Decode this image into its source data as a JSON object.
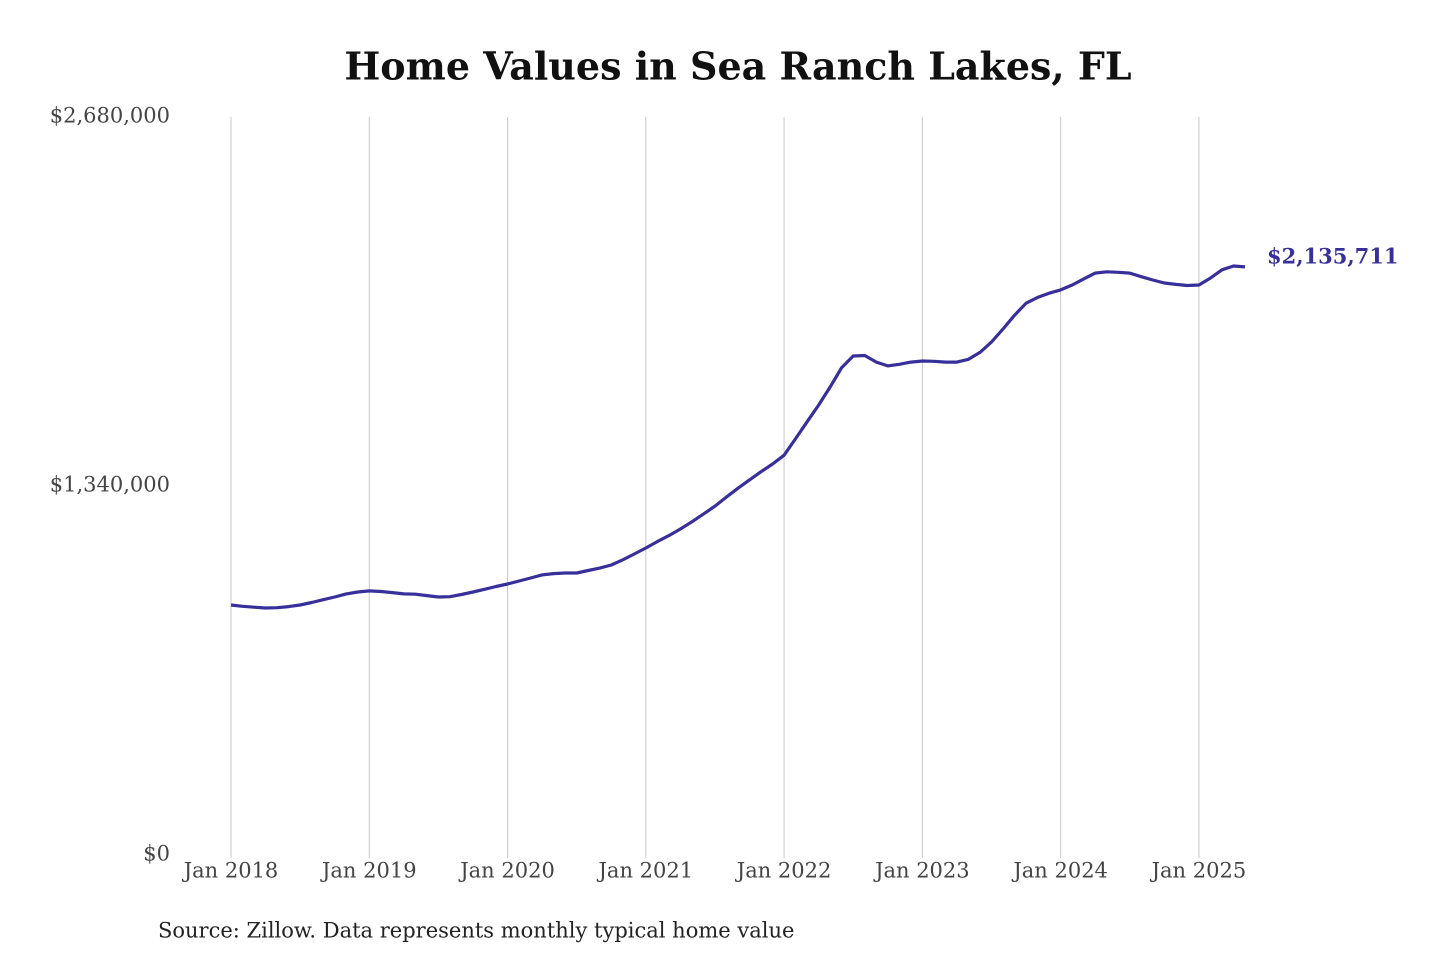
{
  "chart_data": {
    "type": "line",
    "title": "Home Values in Sea Ranch Lakes, FL",
    "source": "Source: Zillow. Data represents monthly typical home value",
    "x": [
      "2018-01",
      "2018-02",
      "2018-03",
      "2018-04",
      "2018-05",
      "2018-06",
      "2018-07",
      "2018-08",
      "2018-09",
      "2018-10",
      "2018-11",
      "2018-12",
      "2019-01",
      "2019-02",
      "2019-03",
      "2019-04",
      "2019-05",
      "2019-06",
      "2019-07",
      "2019-08",
      "2019-09",
      "2019-10",
      "2019-11",
      "2019-12",
      "2020-01",
      "2020-02",
      "2020-03",
      "2020-04",
      "2020-05",
      "2020-06",
      "2020-07",
      "2020-08",
      "2020-09",
      "2020-10",
      "2020-11",
      "2020-12",
      "2021-01",
      "2021-02",
      "2021-03",
      "2021-04",
      "2021-05",
      "2021-06",
      "2021-07",
      "2021-08",
      "2021-09",
      "2021-10",
      "2021-11",
      "2021-12",
      "2022-01",
      "2022-02",
      "2022-03",
      "2022-04",
      "2022-05",
      "2022-06",
      "2022-07",
      "2022-08",
      "2022-09",
      "2022-10",
      "2022-11",
      "2022-12",
      "2023-01",
      "2023-02",
      "2023-03",
      "2023-04",
      "2023-05",
      "2023-06",
      "2023-07",
      "2023-08",
      "2023-09",
      "2023-10",
      "2023-11",
      "2023-12",
      "2024-01",
      "2024-02",
      "2024-03",
      "2024-04",
      "2024-05",
      "2024-06",
      "2024-07",
      "2024-08",
      "2024-09",
      "2024-10",
      "2024-11",
      "2024-12",
      "2025-01",
      "2025-02",
      "2025-03",
      "2025-04",
      "2025-05"
    ],
    "series": [
      {
        "name": "Home value",
        "color": "#37309a",
        "values": [
          908000,
          903000,
          900000,
          897000,
          898000,
          902000,
          908000,
          917000,
          927000,
          937000,
          948000,
          955000,
          959000,
          957000,
          953000,
          948000,
          947000,
          942000,
          937000,
          938000,
          946000,
          955000,
          965000,
          975000,
          984000,
          995000,
          1006000,
          1017000,
          1022000,
          1024000,
          1024000,
          1033000,
          1042000,
          1053000,
          1072000,
          1093000,
          1115000,
          1138000,
          1160000,
          1184000,
          1210000,
          1238000,
          1267000,
          1300000,
          1332000,
          1362000,
          1392000,
          1420000,
          1452000,
          1512000,
          1573000,
          1634000,
          1700000,
          1770000,
          1812000,
          1814000,
          1790000,
          1776000,
          1782000,
          1790000,
          1794000,
          1793000,
          1790000,
          1790000,
          1800000,
          1825000,
          1863000,
          1910000,
          1960000,
          2004000,
          2025000,
          2040000,
          2052000,
          2070000,
          2092000,
          2113000,
          2118000,
          2116000,
          2113000,
          2100000,
          2088000,
          2077000,
          2072000,
          2068000,
          2070000,
          2095000,
          2125000,
          2139000,
          2135711
        ],
        "value_labels": [
          null,
          null,
          null,
          null,
          null,
          null,
          null,
          null,
          null,
          null,
          null,
          null,
          null,
          null,
          null,
          null,
          null,
          null,
          null,
          null,
          null,
          null,
          null,
          null,
          null,
          null,
          null,
          null,
          null,
          null,
          null,
          null,
          null,
          null,
          null,
          null,
          null,
          null,
          null,
          null,
          null,
          null,
          null,
          null,
          null,
          null,
          null,
          null,
          null,
          null,
          null,
          null,
          null,
          null,
          null,
          null,
          null,
          null,
          null,
          null,
          null,
          null,
          null,
          null,
          null,
          null,
          null,
          null,
          null,
          null,
          null,
          null,
          null,
          null,
          null,
          null,
          null,
          null,
          null,
          null,
          null,
          null,
          null,
          null,
          null,
          null,
          null,
          null,
          "$2,135,711"
        ]
      }
    ],
    "xlim": [
      "2018-01",
      "2025-05"
    ],
    "xticks": [
      {
        "value": "2018-01",
        "label": "Jan 2018"
      },
      {
        "value": "2019-01",
        "label": "Jan 2019"
      },
      {
        "value": "2020-01",
        "label": "Jan 2020"
      },
      {
        "value": "2021-01",
        "label": "Jan 2021"
      },
      {
        "value": "2022-01",
        "label": "Jan 2022"
      },
      {
        "value": "2023-01",
        "label": "Jan 2023"
      },
      {
        "value": "2024-01",
        "label": "Jan 2024"
      },
      {
        "value": "2025-01",
        "label": "Jan 2025"
      }
    ],
    "ylim": [
      0,
      2680000
    ],
    "yticks": [
      {
        "value": 0,
        "label": "$0"
      },
      {
        "value": 1340000,
        "label": "$1,340,000"
      },
      {
        "value": 2680000,
        "label": "$2,680,000"
      }
    ],
    "grid": "x"
  }
}
